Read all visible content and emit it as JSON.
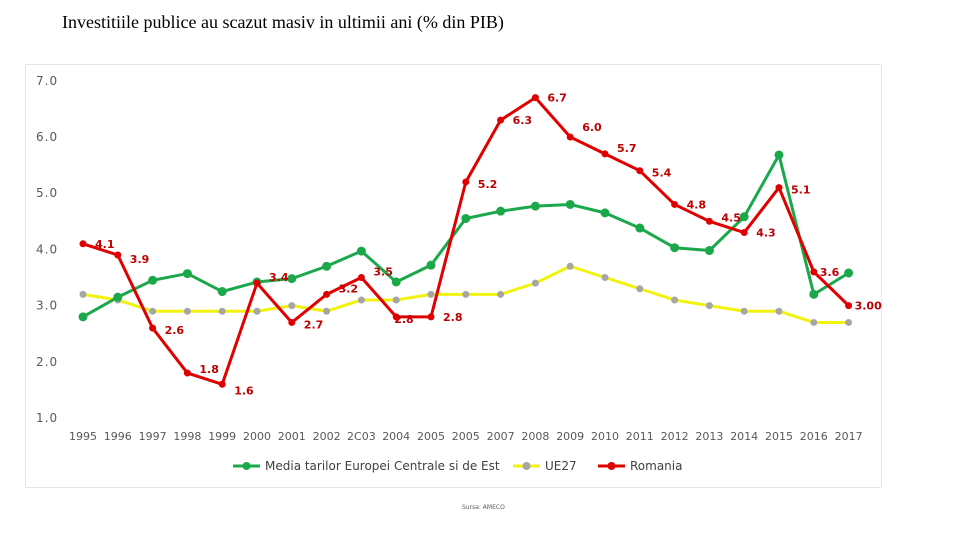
{
  "page": {
    "title": "Investitiile publice au scazut masiv in ultimii ani (% din PIB)",
    "source": "Sursa: AMECO"
  },
  "chart_data": {
    "type": "line",
    "title": "Investitiile publice au scazut masiv in ultimii ani (% din PIB)",
    "xlabel": "",
    "ylabel": "",
    "ylim": [
      1.0,
      7.0
    ],
    "y_tick_labels": [
      "1.0",
      "2.0",
      "3.0",
      "4.0",
      "5.0",
      "6.0",
      "7.0"
    ],
    "categories": [
      "1995",
      "1996",
      "1997",
      "1998",
      "1999",
      "2000",
      "2001",
      "2002",
      "2C03",
      "2004",
      "2005",
      "2005",
      "2007",
      "2008",
      "2009",
      "2010",
      "2011",
      "2012",
      "2013",
      "2014",
      "2015",
      "2016",
      "2017"
    ],
    "grid": false,
    "legend_position": "bottom",
    "series": [
      {
        "name": "Media tarilor Europei Centrale si de Est",
        "color": "#1aa84b",
        "values": [
          2.8,
          3.15,
          3.45,
          3.57,
          3.25,
          3.42,
          3.48,
          3.7,
          3.97,
          3.42,
          3.72,
          4.55,
          4.68,
          4.77,
          4.8,
          4.65,
          4.38,
          4.03,
          3.98,
          4.58,
          5.68,
          3.2,
          3.58
        ]
      },
      {
        "name": "UE27",
        "color": "#f2f20f",
        "values": [
          3.2,
          3.1,
          2.9,
          2.9,
          2.9,
          2.9,
          3.0,
          2.9,
          3.1,
          3.1,
          3.2,
          3.2,
          3.2,
          3.4,
          3.7,
          3.5,
          3.3,
          3.1,
          3.0,
          2.9,
          2.9,
          2.7,
          2.7
        ]
      },
      {
        "name": "Romania",
        "color": "#e00000",
        "values": [
          4.1,
          3.9,
          2.6,
          1.8,
          1.6,
          3.4,
          2.7,
          3.2,
          3.5,
          2.8,
          2.8,
          5.2,
          6.3,
          6.7,
          6.0,
          5.7,
          5.4,
          4.8,
          4.5,
          4.3,
          5.1,
          3.6,
          3.0
        ],
        "data_labels": [
          "4.1",
          "3.9",
          "2.6",
          "1.8",
          "1.6",
          "3.4",
          "2.7",
          "3.2",
          "3.5",
          "2.8",
          "2.8",
          "5.2",
          "6.3",
          "6.7",
          "6.0",
          "5.7",
          "5.4",
          "4.8",
          "4.5",
          "4.3",
          "5.1",
          "3.6",
          "3.00"
        ]
      }
    ]
  }
}
